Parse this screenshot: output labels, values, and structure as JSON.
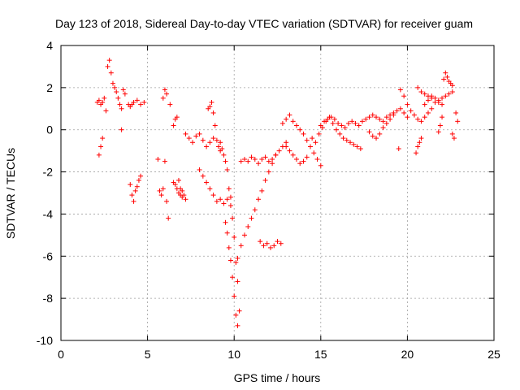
{
  "chart_data": {
    "type": "scatter",
    "title": "Day 123 of 2018, Sidereal Day-to-day VTEC variation (SDTVAR) for receiver guam",
    "xlabel": "GPS time / hours",
    "ylabel": "SDTVAR / TECUs",
    "xlim": [
      0,
      25
    ],
    "ylim": [
      -10,
      4
    ],
    "xticks": [
      0,
      5,
      10,
      15,
      20,
      25
    ],
    "yticks": [
      -10,
      -8,
      -6,
      -4,
      -2,
      0,
      2,
      4
    ],
    "xtick_labels": [
      "0",
      "5",
      "10",
      "15",
      "20",
      "25"
    ],
    "ytick_labels": [
      "-10",
      "-8",
      "-6",
      "-4",
      "-2",
      "0",
      "2",
      "4"
    ],
    "grid": true,
    "marker": "+",
    "color": "#ff0000",
    "series": [
      {
        "name": "guam",
        "x": [
          2.1,
          2.2,
          2.3,
          2.4,
          2.5,
          2.2,
          2.3,
          2.4,
          2.6,
          2.7,
          2.8,
          2.9,
          3.0,
          3.1,
          3.2,
          3.3,
          3.4,
          3.5,
          3.6,
          3.7,
          3.5,
          3.9,
          4.0,
          4.1,
          4.2,
          4.4,
          4.6,
          4.8,
          4.0,
          4.1,
          4.2,
          4.3,
          4.4,
          4.5,
          4.6,
          5.6,
          5.7,
          5.8,
          5.9,
          6.0,
          6.1,
          6.2,
          5.9,
          6.0,
          6.1,
          6.3,
          6.5,
          6.6,
          6.7,
          6.8,
          6.9,
          7.0,
          7.1,
          7.2,
          6.5,
          6.6,
          6.7,
          6.8,
          6.9,
          7.0,
          7.2,
          7.4,
          7.6,
          7.8,
          8.0,
          8.2,
          8.4,
          8.6,
          8.8,
          8.0,
          8.2,
          8.4,
          8.6,
          8.8,
          9.0,
          9.2,
          9.4,
          9.6,
          9.8,
          8.5,
          8.6,
          8.7,
          8.8,
          8.9,
          9.0,
          9.1,
          9.2,
          9.2,
          9.3,
          9.4,
          9.5,
          9.6,
          9.7,
          9.8,
          9.9,
          10.0,
          10.1,
          10.2,
          10.3,
          9.5,
          9.6,
          9.7,
          9.8,
          9.9,
          10.0,
          10.1,
          10.2,
          10.2,
          10.4,
          10.6,
          10.8,
          11.0,
          11.2,
          11.4,
          11.6,
          11.8,
          12.0,
          12.2,
          12.4,
          10.4,
          10.6,
          10.8,
          11.0,
          11.2,
          11.4,
          11.6,
          11.8,
          12.0,
          12.2,
          12.4,
          12.6,
          12.8,
          13.0,
          11.5,
          11.7,
          11.9,
          12.1,
          12.3,
          12.5,
          12.7,
          12.8,
          13.0,
          13.2,
          13.4,
          13.6,
          13.8,
          14.0,
          14.2,
          14.4,
          14.6,
          14.8,
          15.0,
          13.0,
          13.2,
          13.4,
          13.6,
          13.8,
          14.0,
          14.2,
          14.5,
          14.7,
          14.9,
          15.1,
          15.3,
          15.5,
          15.7,
          15.9,
          16.1,
          16.3,
          16.5,
          16.7,
          16.9,
          17.1,
          17.3,
          15.0,
          15.2,
          15.4,
          15.6,
          15.8,
          16.0,
          16.2,
          16.4,
          16.6,
          16.8,
          17.0,
          17.2,
          17.4,
          17.6,
          17.8,
          18.0,
          18.2,
          18.4,
          18.6,
          18.8,
          19.0,
          19.2,
          19.4,
          19.6,
          19.8,
          20.0,
          17.8,
          18.0,
          18.2,
          18.4,
          18.6,
          18.8,
          19.0,
          19.2,
          19.5,
          19.6,
          19.8,
          20.0,
          20.2,
          20.4,
          20.6,
          20.8,
          21.0,
          21.2,
          21.4,
          20.5,
          20.6,
          20.7,
          20.8,
          21.0,
          21.2,
          21.4,
          21.6,
          21.8,
          22.0,
          20.6,
          20.8,
          21.0,
          21.2,
          21.4,
          21.6,
          21.8,
          22.0,
          22.2,
          22.4,
          22.6,
          21.8,
          21.9,
          22.0,
          22.1,
          22.2,
          22.3,
          22.4,
          22.5,
          22.6,
          22.6,
          22.7,
          22.8,
          22.9
        ],
        "y": [
          1.3,
          1.4,
          1.2,
          1.3,
          1.5,
          -1.2,
          -0.8,
          -0.4,
          0.9,
          3.0,
          3.3,
          2.7,
          2.2,
          2.0,
          1.8,
          1.5,
          1.2,
          1.0,
          1.9,
          1.7,
          0.0,
          1.2,
          1.1,
          1.2,
          1.3,
          1.4,
          1.2,
          1.3,
          -2.6,
          -3.1,
          -3.4,
          -2.9,
          -2.7,
          -2.4,
          -2.2,
          -1.4,
          -2.9,
          -3.1,
          -2.8,
          -1.5,
          -3.4,
          -4.2,
          1.5,
          1.9,
          1.7,
          1.2,
          0.2,
          0.5,
          0.6,
          -2.4,
          -2.8,
          -2.9,
          -3.1,
          -3.3,
          -2.5,
          -2.6,
          -2.8,
          -3.0,
          -3.1,
          -3.2,
          -0.2,
          -0.4,
          -0.6,
          -0.3,
          -0.2,
          -0.5,
          -0.8,
          -0.6,
          -0.4,
          -1.9,
          -2.2,
          -2.5,
          -2.8,
          -3.1,
          -3.4,
          -3.3,
          -3.5,
          -3.3,
          -3.2,
          1.0,
          1.1,
          1.3,
          0.8,
          0.2,
          -0.5,
          -0.8,
          -1.0,
          -0.6,
          -0.9,
          -1.2,
          -1.5,
          -1.9,
          -2.8,
          -3.6,
          -4.2,
          -5.1,
          -6.3,
          -7.2,
          -8.6,
          -4.4,
          -4.9,
          -5.6,
          -6.2,
          -7.0,
          -7.9,
          -8.8,
          -9.3,
          -6.1,
          -5.5,
          -5.0,
          -4.6,
          -4.2,
          -3.8,
          -3.3,
          -2.9,
          -2.4,
          -2.0,
          -1.6,
          -1.2,
          -1.5,
          -1.4,
          -1.5,
          -1.3,
          -1.4,
          -1.6,
          -1.4,
          -1.3,
          -1.5,
          -1.4,
          -1.2,
          -1.0,
          -0.8,
          -0.6,
          -5.3,
          -5.5,
          -5.4,
          -5.6,
          -5.5,
          -5.3,
          -5.4,
          0.3,
          0.5,
          0.7,
          0.4,
          0.2,
          0.0,
          -0.2,
          -0.5,
          -0.8,
          -1.1,
          -1.4,
          -1.7,
          -0.8,
          -1.0,
          -1.2,
          -1.4,
          -1.6,
          -1.5,
          -1.3,
          -0.4,
          -0.6,
          -0.2,
          0.1,
          0.4,
          0.6,
          0.3,
          0.0,
          -0.2,
          -0.4,
          -0.5,
          -0.6,
          -0.7,
          -0.8,
          -0.9,
          0.2,
          0.4,
          0.5,
          0.6,
          0.5,
          0.3,
          0.2,
          0.1,
          0.3,
          0.4,
          0.3,
          0.2,
          0.4,
          0.5,
          0.6,
          0.7,
          0.6,
          0.5,
          0.4,
          0.6,
          0.7,
          0.8,
          0.9,
          1.0,
          0.8,
          0.6,
          -0.1,
          -0.3,
          -0.4,
          -0.2,
          0.1,
          0.3,
          0.5,
          0.7,
          -0.9,
          1.9,
          1.6,
          1.2,
          0.9,
          0.7,
          0.5,
          0.4,
          0.6,
          0.8,
          1.0,
          -1.1,
          -0.8,
          -0.6,
          -0.4,
          1.2,
          1.4,
          1.6,
          1.5,
          1.3,
          1.2,
          2.0,
          1.8,
          1.7,
          1.6,
          1.5,
          1.3,
          1.4,
          1.5,
          1.6,
          1.7,
          1.8,
          -0.1,
          0.2,
          0.6,
          2.4,
          2.7,
          2.5,
          2.3,
          2.2,
          2.1,
          -0.2,
          -0.4,
          0.8,
          0.4
        ]
      }
    ]
  }
}
